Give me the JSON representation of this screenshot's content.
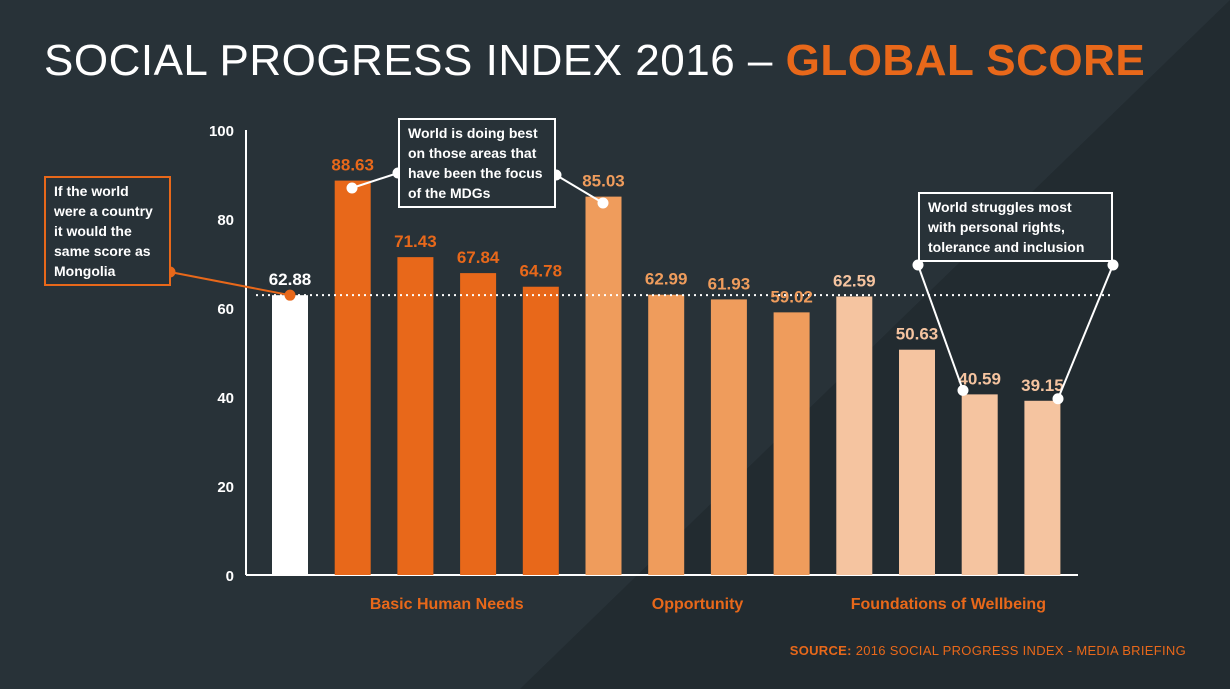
{
  "title": {
    "main": "SOCIAL PROGRESS INDEX 2016 –",
    "accent": "GLOBAL SCORE"
  },
  "chart_data": {
    "type": "bar",
    "ylim": [
      0,
      100
    ],
    "yticks": [
      0,
      20,
      40,
      60,
      80,
      100
    ],
    "grid": false,
    "reference_line": 62.88,
    "values": [
      62.88,
      88.63,
      71.43,
      67.84,
      64.78,
      85.03,
      62.99,
      61.93,
      59.02,
      62.59,
      50.63,
      40.59,
      39.15
    ],
    "value_labels": [
      "62.88",
      "88.63",
      "71.43",
      "67.84",
      "64.78",
      "85.03",
      "62.99",
      "61.93",
      "59.02",
      "62.59",
      "50.63",
      "40.59",
      "39.15"
    ],
    "groups": [
      "overall",
      "basic",
      "basic",
      "basic",
      "basic",
      "opportunity",
      "opportunity",
      "opportunity",
      "opportunity",
      "wellbeing",
      "wellbeing",
      "wellbeing",
      "wellbeing"
    ],
    "group_labels": [
      {
        "key": "basic",
        "label": "Basic Human Needs"
      },
      {
        "key": "opportunity",
        "label": "Opportunity"
      },
      {
        "key": "wellbeing",
        "label": "Foundations of Wellbeing"
      }
    ],
    "colors": {
      "overall": "#ffffff",
      "basic": "#e8681a",
      "opportunity": "#ef9c5c",
      "wellbeing": "#f5c4a0"
    }
  },
  "annotations": {
    "mongolia": "If the world were a country it would the same score as Mongolia",
    "mdg": "World is doing best on those areas that have been the focus of the MDGs",
    "rights": "World struggles most with personal rights, tolerance and inclusion"
  },
  "source": {
    "key": "SOURCE:",
    "text": " 2016 SOCIAL PROGRESS INDEX - MEDIA BRIEFING"
  }
}
